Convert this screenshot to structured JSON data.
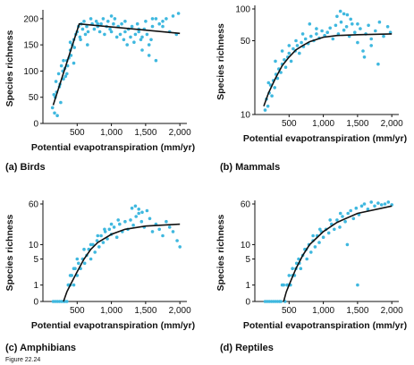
{
  "figure_label": "Figure 22.24",
  "colors": {
    "points": "#3fb8df",
    "curve": "#111111",
    "axis": "#111111"
  },
  "chart_data": [
    {
      "type": "scatter",
      "caption": "(a) Birds",
      "xlabel": "Potential evapotranspiration (mm/yr)",
      "ylabel": "Species richness",
      "xlim": [
        0,
        2050
      ],
      "ylim": [
        0,
        210
      ],
      "yscale": "linear",
      "xticks": [
        500,
        1000,
        1500,
        2000
      ],
      "xtick_labels": [
        "500",
        "1,000",
        "1,500",
        "2,000"
      ],
      "yticks": [
        0,
        50,
        100,
        150,
        200
      ],
      "ytick_labels": [
        "0",
        "50",
        "100",
        "150",
        "200"
      ],
      "fit": {
        "x": [
          150,
          530,
          2000
        ],
        "y": [
          35,
          190,
          172
        ]
      },
      "points": {
        "x": [
          140,
          160,
          170,
          190,
          200,
          210,
          230,
          240,
          260,
          270,
          290,
          300,
          320,
          330,
          350,
          360,
          380,
          400,
          410,
          430,
          450,
          460,
          480,
          500,
          520,
          540,
          560,
          580,
          600,
          620,
          640,
          660,
          700,
          720,
          750,
          780,
          800,
          830,
          850,
          880,
          900,
          930,
          950,
          980,
          1000,
          1030,
          1050,
          1080,
          1100,
          1130,
          1150,
          1180,
          1200,
          1230,
          1250,
          1280,
          1300,
          1330,
          1350,
          1380,
          1400,
          1430,
          1450,
          1480,
          1500,
          1520,
          1550,
          1580,
          1600,
          1650,
          1700,
          1750,
          1800,
          1850,
          1900,
          1950,
          1980,
          1750,
          1600,
          1400,
          1200,
          1000,
          800,
          650,
          550,
          450,
          350,
          250,
          180,
          300,
          400,
          1550,
          1650,
          1450
        ],
        "y": [
          30,
          55,
          20,
          80,
          60,
          15,
          95,
          70,
          40,
          110,
          100,
          85,
          105,
          90,
          120,
          110,
          125,
          140,
          130,
          150,
          160,
          145,
          170,
          175,
          185,
          165,
          190,
          180,
          195,
          170,
          185,
          175,
          200,
          190,
          180,
          195,
          185,
          175,
          190,
          200,
          170,
          185,
          195,
          180,
          175,
          190,
          200,
          165,
          185,
          170,
          190,
          160,
          175,
          150,
          180,
          165,
          185,
          155,
          170,
          190,
          175,
          160,
          140,
          180,
          195,
          170,
          150,
          160,
          185,
          200,
          190,
          195,
          200,
          175,
          205,
          170,
          210,
          185,
          200,
          180,
          195,
          205,
          190,
          150,
          160,
          115,
          95,
          75,
          50,
          120,
          155,
          130,
          120,
          165
        ]
      }
    },
    {
      "type": "scatter",
      "caption": "(b) Mammals",
      "xlabel": "Potential evapotranspiration (mm/yr)",
      "ylabel": "Species richness",
      "xlim": [
        0,
        2050
      ],
      "ylim": [
        10,
        100
      ],
      "yscale": "log",
      "xticks": [
        500,
        1000,
        1500,
        2000
      ],
      "xtick_labels": [
        "500",
        "1,000",
        "1,500",
        "2,000"
      ],
      "yticks": [
        10,
        50,
        100
      ],
      "ytick_labels": [
        "10",
        "50",
        "100"
      ],
      "fit": {
        "x": [
          130,
          200,
          300,
          400,
          500,
          600,
          700,
          800,
          1000,
          1200,
          1500,
          2000
        ],
        "y": [
          12,
          16,
          22,
          29,
          35,
          41,
          45,
          49,
          54,
          56,
          57,
          58
        ]
      },
      "points": {
        "x": [
          150,
          170,
          190,
          210,
          230,
          250,
          270,
          290,
          310,
          330,
          350,
          380,
          400,
          430,
          450,
          480,
          500,
          530,
          560,
          590,
          620,
          650,
          680,
          710,
          740,
          780,
          820,
          860,
          900,
          940,
          980,
          1020,
          1060,
          1100,
          1140,
          1180,
          1220,
          1260,
          1300,
          1340,
          1380,
          1420,
          1460,
          1500,
          1540,
          1580,
          1620,
          1660,
          1700,
          1760,
          1820,
          1880,
          1940,
          1980,
          1200,
          1300,
          1400,
          1500,
          1600,
          1700,
          1800,
          900,
          800,
          700,
          600,
          500,
          400,
          300,
          200,
          1250,
          1350
        ],
        "y": [
          11,
          14,
          12,
          16,
          19,
          15,
          21,
          18,
          24,
          22,
          27,
          25,
          30,
          33,
          28,
          35,
          38,
          32,
          42,
          40,
          45,
          38,
          48,
          44,
          52,
          47,
          55,
          50,
          58,
          53,
          62,
          56,
          60,
          66,
          52,
          70,
          58,
          75,
          63,
          68,
          55,
          72,
          60,
          48,
          65,
          40,
          58,
          70,
          52,
          62,
          75,
          55,
          68,
          60,
          85,
          90,
          80,
          72,
          35,
          45,
          30,
          65,
          72,
          58,
          50,
          45,
          40,
          32,
          20,
          95,
          88
        ]
      }
    },
    {
      "type": "scatter",
      "caption": "(c) Amphibians",
      "xlabel": "Potential evapotranspiration (mm/yr)",
      "ylabel": "Species richness",
      "xlim": [
        0,
        2050
      ],
      "ylim": [
        0,
        60
      ],
      "yscale": "log1p",
      "xticks": [
        500,
        1000,
        1500,
        2000
      ],
      "xtick_labels": [
        "500",
        "1,000",
        "1,500",
        "2,000"
      ],
      "yticks": [
        0,
        1,
        5,
        10,
        60
      ],
      "ytick_labels": [
        "0",
        "1",
        "5",
        "10",
        "60"
      ],
      "fit": {
        "x": [
          300,
          350,
          400,
          500,
          600,
          700,
          800,
          1000,
          1200,
          1500,
          2000
        ],
        "y": [
          0,
          0.5,
          1,
          2.5,
          5,
          8,
          11,
          16,
          20,
          23,
          25
        ]
      },
      "points": {
        "x": [
          150,
          180,
          210,
          240,
          270,
          300,
          320,
          350,
          370,
          400,
          420,
          450,
          470,
          500,
          520,
          550,
          580,
          610,
          640,
          670,
          700,
          730,
          760,
          790,
          820,
          850,
          880,
          910,
          940,
          970,
          1000,
          1040,
          1080,
          1120,
          1160,
          1200,
          1240,
          1280,
          1320,
          1360,
          1400,
          1440,
          1480,
          1520,
          1560,
          1600,
          1650,
          1700,
          1750,
          1800,
          1850,
          1900,
          1960,
          2000,
          1300,
          1350,
          1400,
          1450,
          1100,
          1000,
          900,
          800,
          700,
          600,
          500,
          450,
          400,
          380
        ],
        "y": [
          0,
          0,
          0,
          0,
          0,
          0,
          0,
          0,
          1,
          1,
          2,
          1,
          3,
          2,
          4,
          3,
          5,
          4,
          6,
          8,
          5,
          10,
          7,
          12,
          9,
          15,
          11,
          18,
          13,
          20,
          16,
          22,
          14,
          25,
          18,
          28,
          20,
          30,
          24,
          35,
          40,
          28,
          22,
          45,
          32,
          18,
          25,
          20,
          15,
          28,
          22,
          18,
          12,
          9,
          50,
          55,
          48,
          42,
          30,
          25,
          20,
          15,
          10,
          8,
          5,
          3,
          2,
          1
        ]
      }
    },
    {
      "type": "scatter",
      "caption": "(d) Reptiles",
      "xlabel": "Potential evapotranspiration (mm/yr)",
      "ylabel": "Species richness",
      "xlim": [
        0,
        2050
      ],
      "ylim": [
        0,
        60
      ],
      "yscale": "log1p",
      "xticks": [
        500,
        1000,
        1500,
        2000
      ],
      "xtick_labels": [
        "500",
        "1,000",
        "1,500",
        "2,000"
      ],
      "yticks": [
        0,
        1,
        5,
        10,
        60
      ],
      "ytick_labels": [
        "0",
        "1",
        "5",
        "10",
        "60"
      ],
      "fit": {
        "x": [
          420,
          460,
          500,
          600,
          700,
          800,
          1000,
          1200,
          1500,
          2000
        ],
        "y": [
          0,
          0.5,
          1,
          3,
          6,
          10,
          18,
          27,
          40,
          55
        ]
      },
      "points": {
        "x": [
          150,
          180,
          210,
          240,
          270,
          300,
          330,
          360,
          380,
          400,
          420,
          440,
          470,
          500,
          520,
          550,
          580,
          610,
          640,
          670,
          700,
          730,
          760,
          790,
          820,
          850,
          880,
          910,
          940,
          970,
          1000,
          1040,
          1080,
          1120,
          1160,
          1200,
          1240,
          1280,
          1320,
          1360,
          1400,
          1440,
          1480,
          1520,
          1560,
          1600,
          1650,
          1700,
          1750,
          1800,
          1850,
          1900,
          1950,
          2000,
          1500,
          1350,
          1250,
          1100,
          950,
          850,
          750,
          650,
          600,
          550,
          480
        ],
        "y": [
          0,
          0,
          0,
          0,
          0,
          0,
          0,
          0,
          0,
          1,
          1,
          0,
          1,
          2,
          1,
          3,
          2,
          4,
          5,
          3,
          6,
          8,
          5,
          10,
          7,
          12,
          9,
          15,
          11,
          18,
          14,
          20,
          17,
          25,
          20,
          30,
          22,
          35,
          28,
          40,
          45,
          32,
          50,
          38,
          55,
          60,
          48,
          65,
          55,
          62,
          58,
          60,
          65,
          58,
          1,
          10,
          40,
          30,
          20,
          15,
          8,
          4,
          3,
          2,
          1
        ]
      }
    }
  ]
}
